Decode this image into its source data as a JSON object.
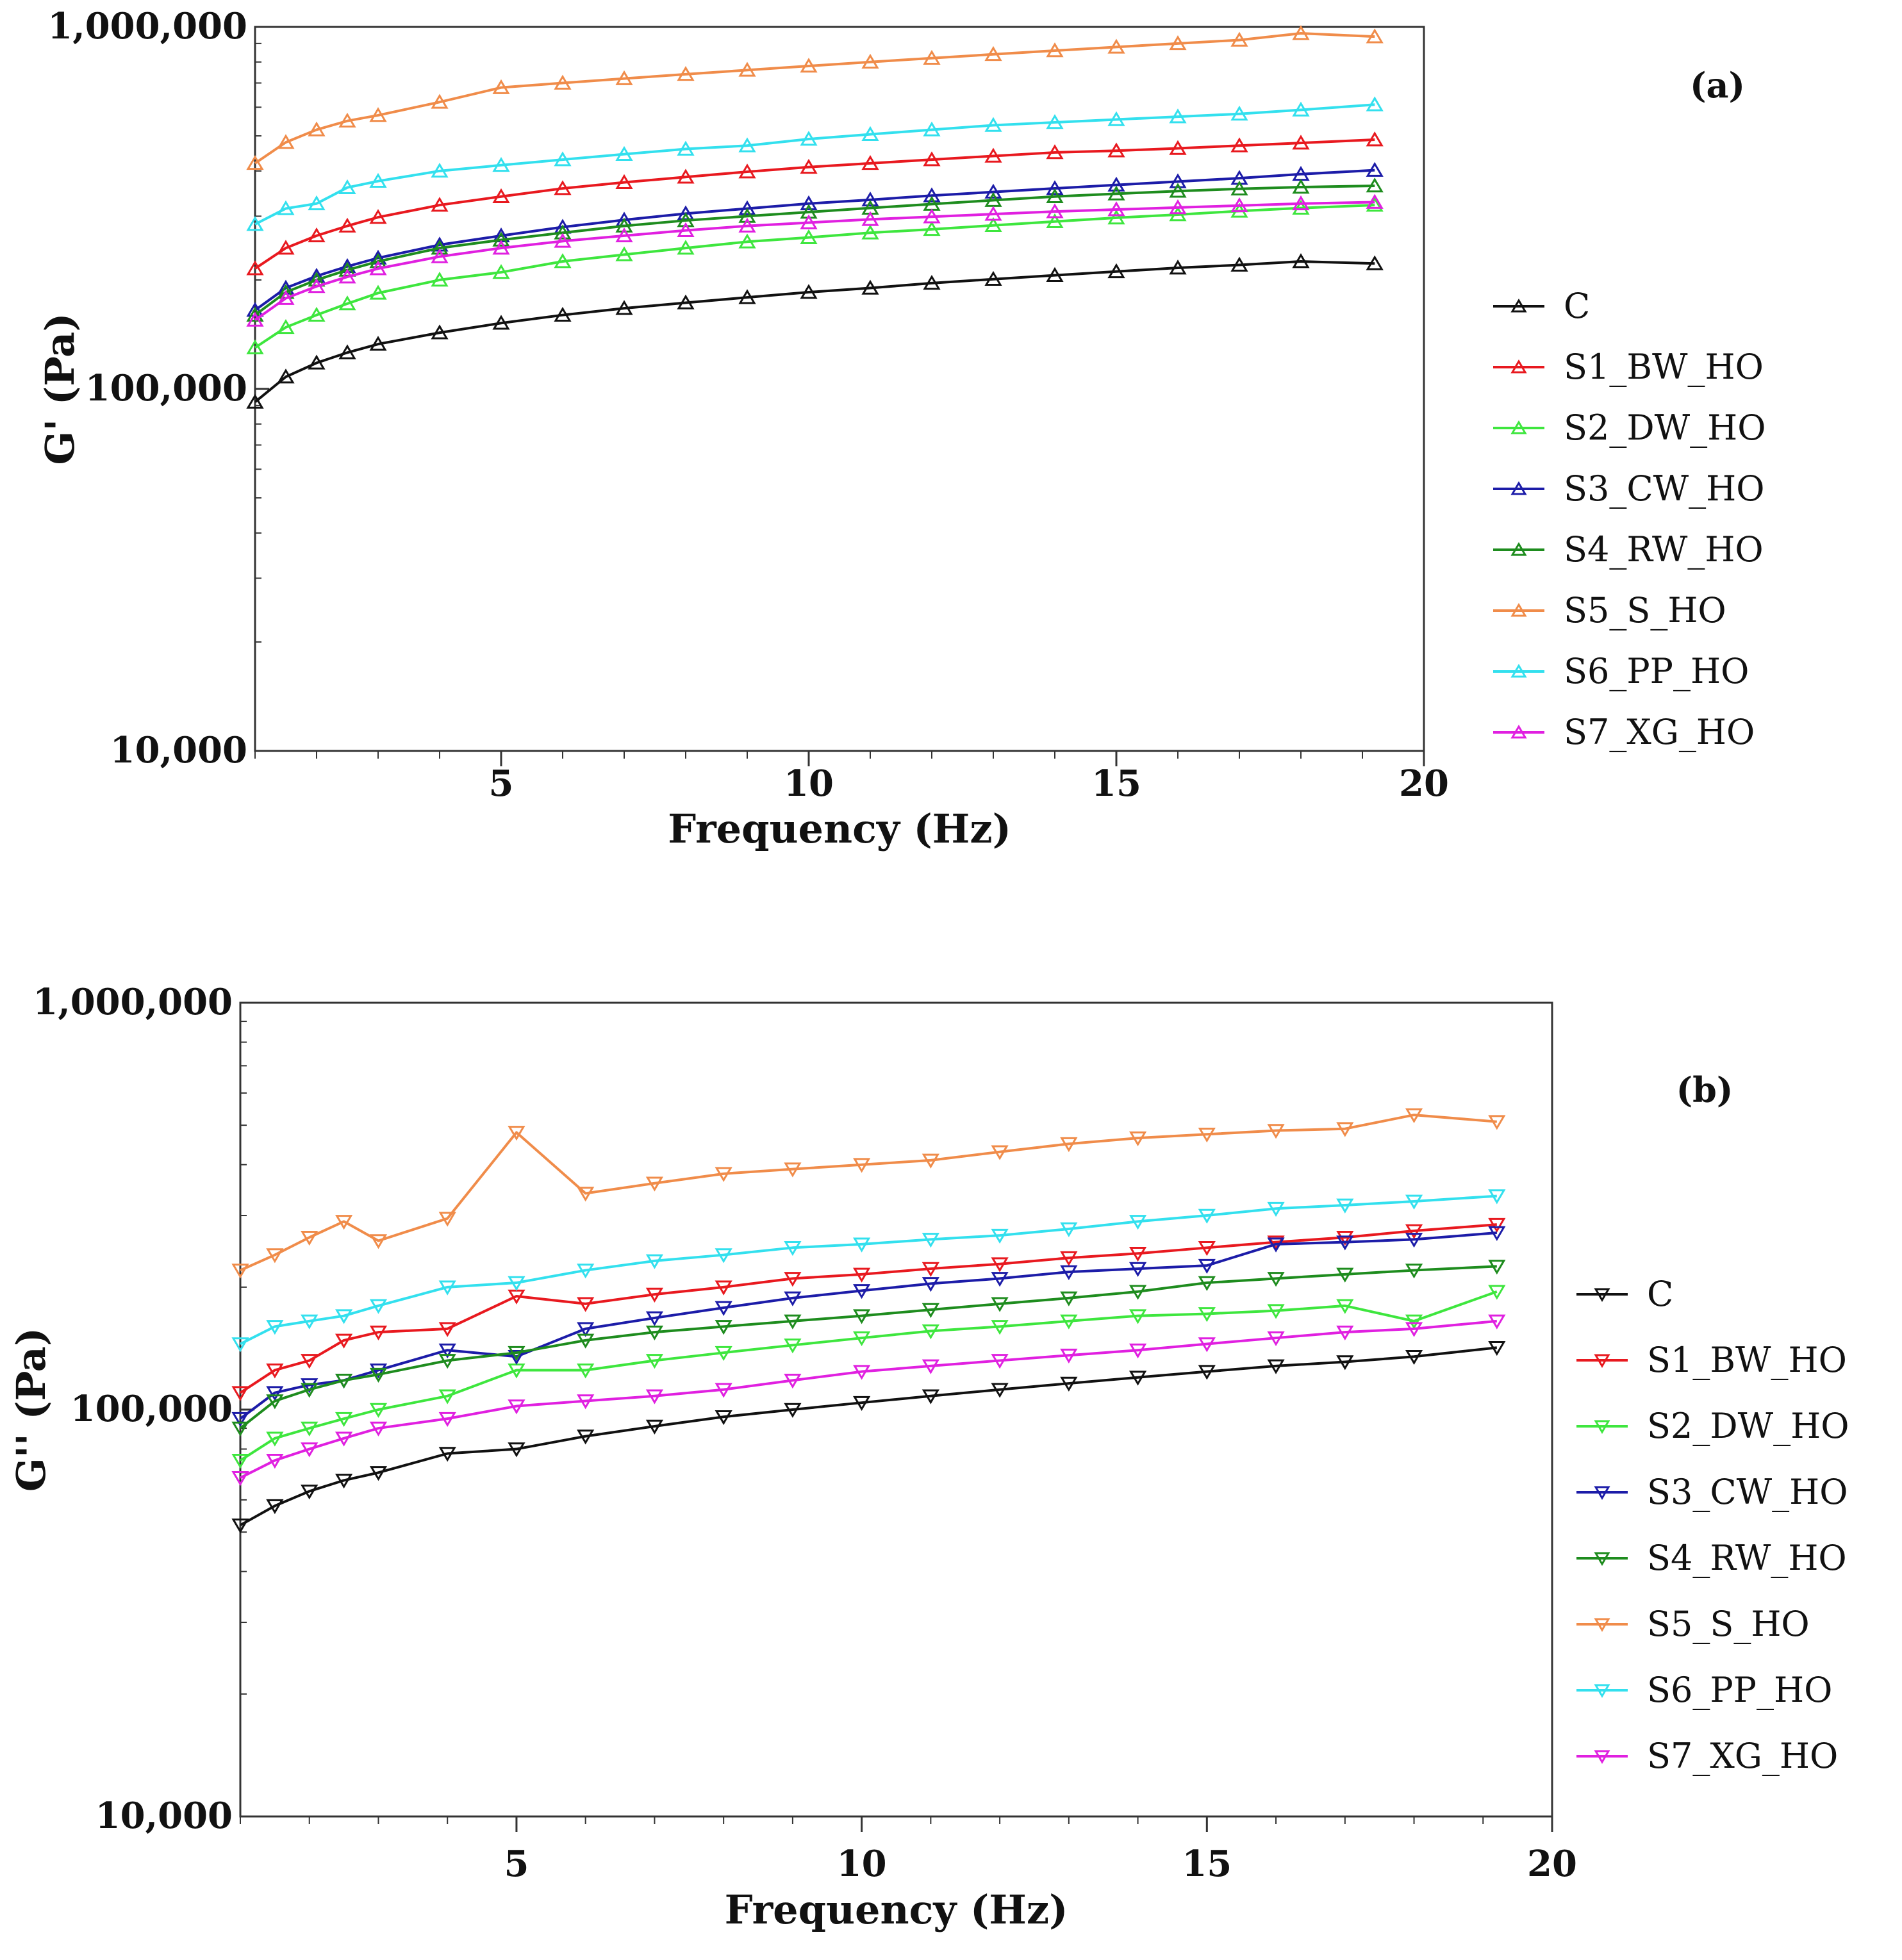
{
  "chart_data": [
    {
      "type": "line",
      "panel_label": "(a)",
      "xlabel": "Frequency (Hz)",
      "ylabel": "G' (Pa)",
      "yscale": "log",
      "xlim": [
        1,
        20
      ],
      "ylim": [
        10000,
        1000000
      ],
      "xticks": [
        5,
        10,
        15,
        20
      ],
      "xtick_labels": [
        "5",
        "10",
        "15",
        "20"
      ],
      "yticks": [
        10000,
        100000,
        1000000
      ],
      "ytick_labels": [
        "10,000",
        "100,000",
        "1,000,000"
      ],
      "marker": "triangle-up",
      "x": [
        1,
        1.5,
        2,
        2.5,
        3,
        4,
        5,
        6,
        7,
        8,
        9,
        10,
        11,
        12,
        13,
        14,
        15,
        16,
        17,
        18,
        19.2
      ],
      "series": [
        {
          "name": "C",
          "color": "#111111",
          "values": [
            92000,
            108000,
            118000,
            126000,
            133000,
            143000,
            152000,
            160000,
            167000,
            173000,
            179000,
            185000,
            190000,
            196000,
            201000,
            206000,
            211000,
            216000,
            220000,
            225000,
            222000
          ]
        },
        {
          "name": "S1_BW_HO",
          "color": "#e8191f",
          "values": [
            215000,
            245000,
            265000,
            282000,
            298000,
            322000,
            340000,
            358000,
            372000,
            385000,
            398000,
            410000,
            420000,
            430000,
            440000,
            450000,
            455000,
            462000,
            470000,
            478000,
            488000
          ]
        },
        {
          "name": "S2_DW_HO",
          "color": "#3ee63e",
          "values": [
            130000,
            148000,
            160000,
            172000,
            184000,
            200000,
            210000,
            225000,
            235000,
            245000,
            255000,
            262000,
            270000,
            276000,
            283000,
            290000,
            297000,
            303000,
            310000,
            316000,
            322000
          ]
        },
        {
          "name": "S3_CW_HO",
          "color": "#1c1ca8",
          "values": [
            165000,
            190000,
            205000,
            218000,
            230000,
            250000,
            265000,
            280000,
            293000,
            305000,
            315000,
            325000,
            333000,
            342000,
            350000,
            358000,
            366000,
            374000,
            382000,
            392000,
            402000
          ]
        },
        {
          "name": "S4_RW_HO",
          "color": "#1e8c1e",
          "values": [
            160000,
            185000,
            200000,
            213000,
            225000,
            245000,
            258000,
            270000,
            282000,
            292000,
            300000,
            308000,
            316000,
            324000,
            332000,
            340000,
            346000,
            352000,
            357000,
            361000,
            364000
          ]
        },
        {
          "name": "S5_S_HO",
          "color": "#f08c4a",
          "values": [
            420000,
            480000,
            520000,
            550000,
            570000,
            620000,
            680000,
            700000,
            720000,
            740000,
            760000,
            780000,
            800000,
            820000,
            840000,
            860000,
            880000,
            900000,
            920000,
            960000,
            940000
          ]
        },
        {
          "name": "S6_PP_HO",
          "color": "#33e0ee",
          "values": [
            285000,
            315000,
            325000,
            360000,
            375000,
            400000,
            415000,
            430000,
            445000,
            460000,
            470000,
            490000,
            505000,
            520000,
            535000,
            545000,
            555000,
            565000,
            575000,
            590000,
            610000
          ]
        },
        {
          "name": "S7_XG_HO",
          "color": "#e020e0",
          "values": [
            155000,
            178000,
            192000,
            204000,
            215000,
            232000,
            245000,
            256000,
            265000,
            274000,
            282000,
            288000,
            294000,
            299000,
            304000,
            309000,
            313000,
            317000,
            321000,
            325000,
            328000
          ]
        }
      ]
    },
    {
      "type": "line",
      "panel_label": "(b)",
      "xlabel": "Frequency (Hz)",
      "ylabel": "G'' (Pa)",
      "yscale": "log",
      "xlim": [
        1,
        20
      ],
      "ylim": [
        10000,
        1000000
      ],
      "xticks": [
        5,
        10,
        15,
        20
      ],
      "xtick_labels": [
        "5",
        "10",
        "15",
        "20"
      ],
      "yticks": [
        10000,
        100000,
        1000000
      ],
      "ytick_labels": [
        "10,000",
        "100,000",
        "1,000,000"
      ],
      "marker": "triangle-down",
      "x": [
        1,
        1.5,
        2,
        2.5,
        3,
        4,
        5,
        6,
        7,
        8,
        9,
        10,
        11,
        12,
        13,
        14,
        15,
        16,
        17,
        18,
        19.2
      ],
      "series": [
        {
          "name": "C",
          "color": "#111111",
          "values": [
            52000,
            58000,
            63000,
            67000,
            70000,
            78000,
            80000,
            86000,
            91000,
            96000,
            100000,
            104000,
            108000,
            112000,
            116000,
            120000,
            124000,
            128000,
            131000,
            135000,
            142000
          ]
        },
        {
          "name": "S1_BW_HO",
          "color": "#e8191f",
          "values": [
            110000,
            125000,
            132000,
            148000,
            155000,
            158000,
            190000,
            182000,
            192000,
            200000,
            210000,
            215000,
            222000,
            228000,
            236000,
            242000,
            250000,
            258000,
            265000,
            275000,
            285000
          ]
        },
        {
          "name": "S2_DW_HO",
          "color": "#3ee63e",
          "values": [
            75000,
            85000,
            90000,
            95000,
            100000,
            108000,
            125000,
            125000,
            132000,
            138000,
            144000,
            150000,
            156000,
            160000,
            165000,
            170000,
            172000,
            175000,
            180000,
            165000,
            195000
          ]
        },
        {
          "name": "S3_CW_HO",
          "color": "#1c1ca8",
          "values": [
            95000,
            110000,
            115000,
            118000,
            125000,
            140000,
            135000,
            158000,
            168000,
            178000,
            188000,
            196000,
            204000,
            210000,
            218000,
            222000,
            226000,
            255000,
            258000,
            262000,
            272000
          ]
        },
        {
          "name": "S4_RW_HO",
          "color": "#1e8c1e",
          "values": [
            90000,
            105000,
            112000,
            118000,
            122000,
            132000,
            138000,
            148000,
            155000,
            160000,
            165000,
            170000,
            176000,
            182000,
            188000,
            195000,
            205000,
            210000,
            215000,
            220000,
            225000
          ]
        },
        {
          "name": "S5_S_HO",
          "color": "#f08c4a",
          "values": [
            220000,
            240000,
            265000,
            290000,
            260000,
            295000,
            480000,
            340000,
            360000,
            380000,
            390000,
            400000,
            410000,
            430000,
            450000,
            465000,
            475000,
            485000,
            490000,
            530000,
            510000
          ]
        },
        {
          "name": "S6_PP_HO",
          "color": "#33e0ee",
          "values": [
            145000,
            160000,
            165000,
            170000,
            180000,
            200000,
            205000,
            220000,
            232000,
            240000,
            250000,
            255000,
            262000,
            268000,
            278000,
            290000,
            300000,
            312000,
            318000,
            325000,
            335000
          ]
        },
        {
          "name": "S7_XG_HO",
          "color": "#e020e0",
          "values": [
            68000,
            75000,
            80000,
            85000,
            90000,
            95000,
            102000,
            105000,
            108000,
            112000,
            118000,
            124000,
            128000,
            132000,
            136000,
            140000,
            145000,
            150000,
            155000,
            158000,
            165000
          ]
        }
      ]
    }
  ]
}
